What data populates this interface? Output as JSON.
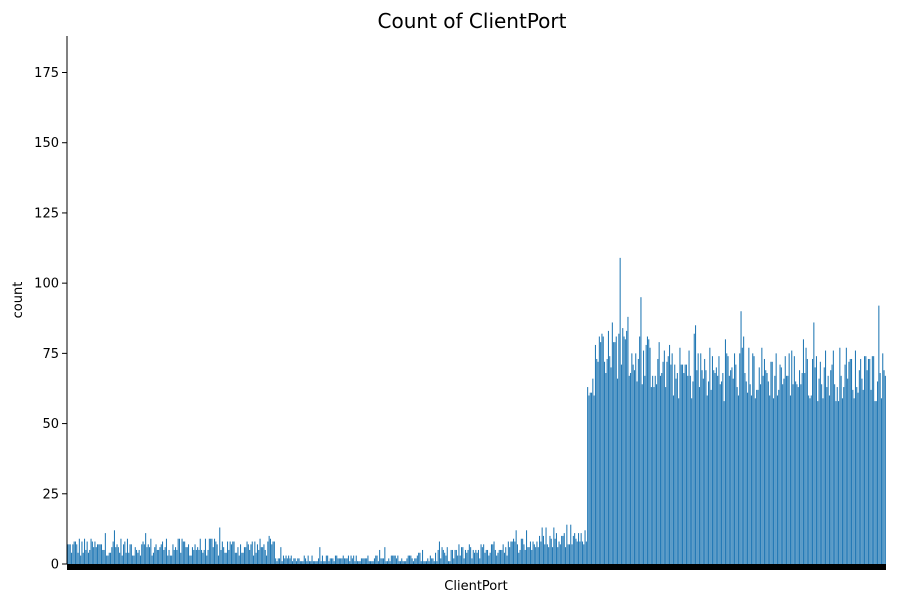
{
  "chart_data": {
    "type": "bar",
    "title": "Count of ClientPort",
    "xlabel": "ClientPort",
    "ylabel": "count",
    "ylim": [
      0,
      188
    ],
    "yticks": [
      0,
      25,
      50,
      75,
      100,
      125,
      150,
      175
    ],
    "xtick_labels": "none (dense categorical ticks drawn as a solid black band)",
    "grid": false,
    "color": "#1f77b4",
    "series": [
      {
        "segments": [
          {
            "count": 160,
            "range": [
              2,
              14
            ],
            "note": "low ports, counts mostly 3–10"
          },
          {
            "count": 110,
            "range": [
              0,
              6
            ],
            "note": "mid ports, counts mostly 1–4"
          },
          {
            "count": 130,
            "range": [
              1,
              15
            ],
            "note": "rising ports, counts mostly 3–12"
          },
          {
            "count": 230,
            "range": [
              47,
              109
            ],
            "note": "high ports, counts mostly 55–80"
          }
        ],
        "max_value": 109
      }
    ]
  }
}
